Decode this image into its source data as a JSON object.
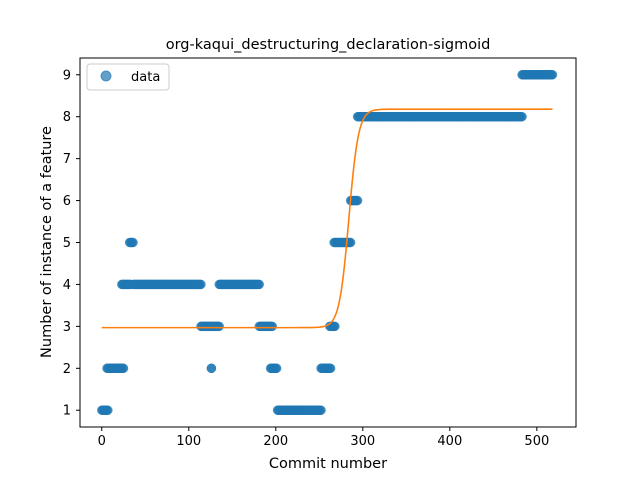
{
  "chart_data": {
    "type": "scatter",
    "title": "org-kaqui_destructuring_declaration-sigmoid",
    "xlabel": "Commit number",
    "ylabel": "Number of instance of a feature",
    "xlim": [
      -25,
      545
    ],
    "ylim": [
      0.6,
      9.4
    ],
    "xticks": [
      0,
      100,
      200,
      300,
      400,
      500
    ],
    "yticks": [
      1,
      2,
      3,
      4,
      5,
      6,
      7,
      8,
      9
    ],
    "grid": false,
    "legend_position": "top-left",
    "series": [
      {
        "name": "data",
        "kind": "scatter",
        "color": "#1f77b4",
        "segments": [
          {
            "x_start": 0,
            "x_end": 7,
            "y": 1
          },
          {
            "x_start": 6,
            "x_end": 25,
            "y": 2
          },
          {
            "x_start": 23,
            "x_end": 33,
            "y": 4
          },
          {
            "x_start": 32,
            "x_end": 36,
            "y": 5
          },
          {
            "x_start": 36,
            "x_end": 114,
            "y": 4
          },
          {
            "x_start": 114,
            "x_end": 135,
            "y": 3
          },
          {
            "x_start": 126,
            "x_end": 126,
            "y": 2
          },
          {
            "x_start": 135,
            "x_end": 181,
            "y": 4
          },
          {
            "x_start": 181,
            "x_end": 196,
            "y": 3
          },
          {
            "x_start": 194,
            "x_end": 201,
            "y": 2
          },
          {
            "x_start": 202,
            "x_end": 252,
            "y": 1
          },
          {
            "x_start": 252,
            "x_end": 263,
            "y": 2
          },
          {
            "x_start": 262,
            "x_end": 268,
            "y": 3
          },
          {
            "x_start": 267,
            "x_end": 286,
            "y": 5
          },
          {
            "x_start": 286,
            "x_end": 294,
            "y": 6
          },
          {
            "x_start": 294,
            "x_end": 483,
            "y": 8
          },
          {
            "x_start": 483,
            "x_end": 518,
            "y": 9
          }
        ]
      },
      {
        "name": "",
        "kind": "line",
        "color": "#ff7f0e",
        "model": "sigmoid",
        "params": {
          "lower": 2.97,
          "upper": 8.18,
          "midpoint": 284,
          "scale": 5.5
        },
        "x_range": [
          0,
          518
        ]
      }
    ]
  }
}
